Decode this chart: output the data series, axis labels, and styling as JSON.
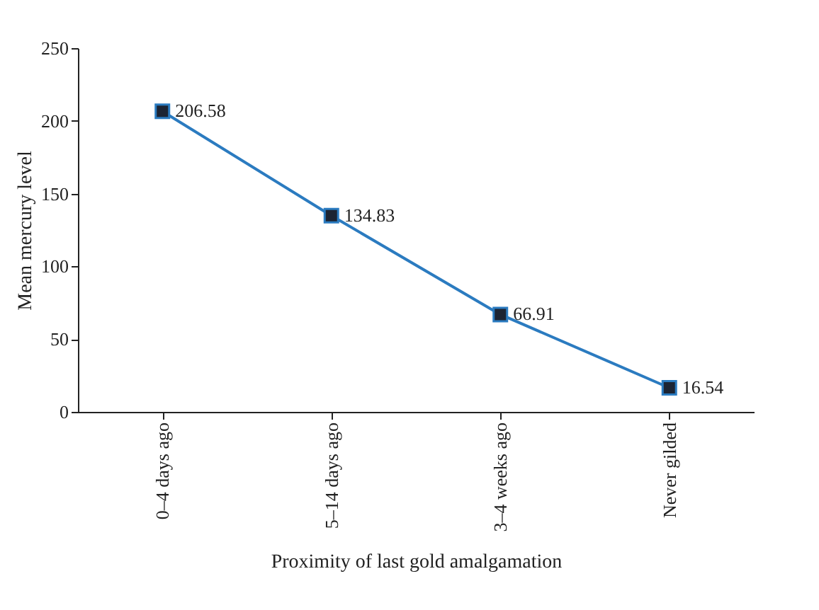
{
  "chart_data": {
    "type": "line",
    "xlabel": "Proximity of last gold amalgamation",
    "ylabel": "Mean mercury level",
    "categories": [
      "0–4 days ago",
      "5–14 days ago",
      "3–4 weeks ago",
      "Never gilded"
    ],
    "series": [
      {
        "color": "#2b7bc0",
        "values": [
          206.58,
          134.83,
          66.91,
          16.54
        ]
      }
    ],
    "ylim": [
      0,
      250
    ],
    "yticks": [
      0,
      50,
      100,
      150,
      200,
      250
    ],
    "grid": false,
    "marker": "square",
    "line_style": "solid",
    "data_labels": true
  }
}
